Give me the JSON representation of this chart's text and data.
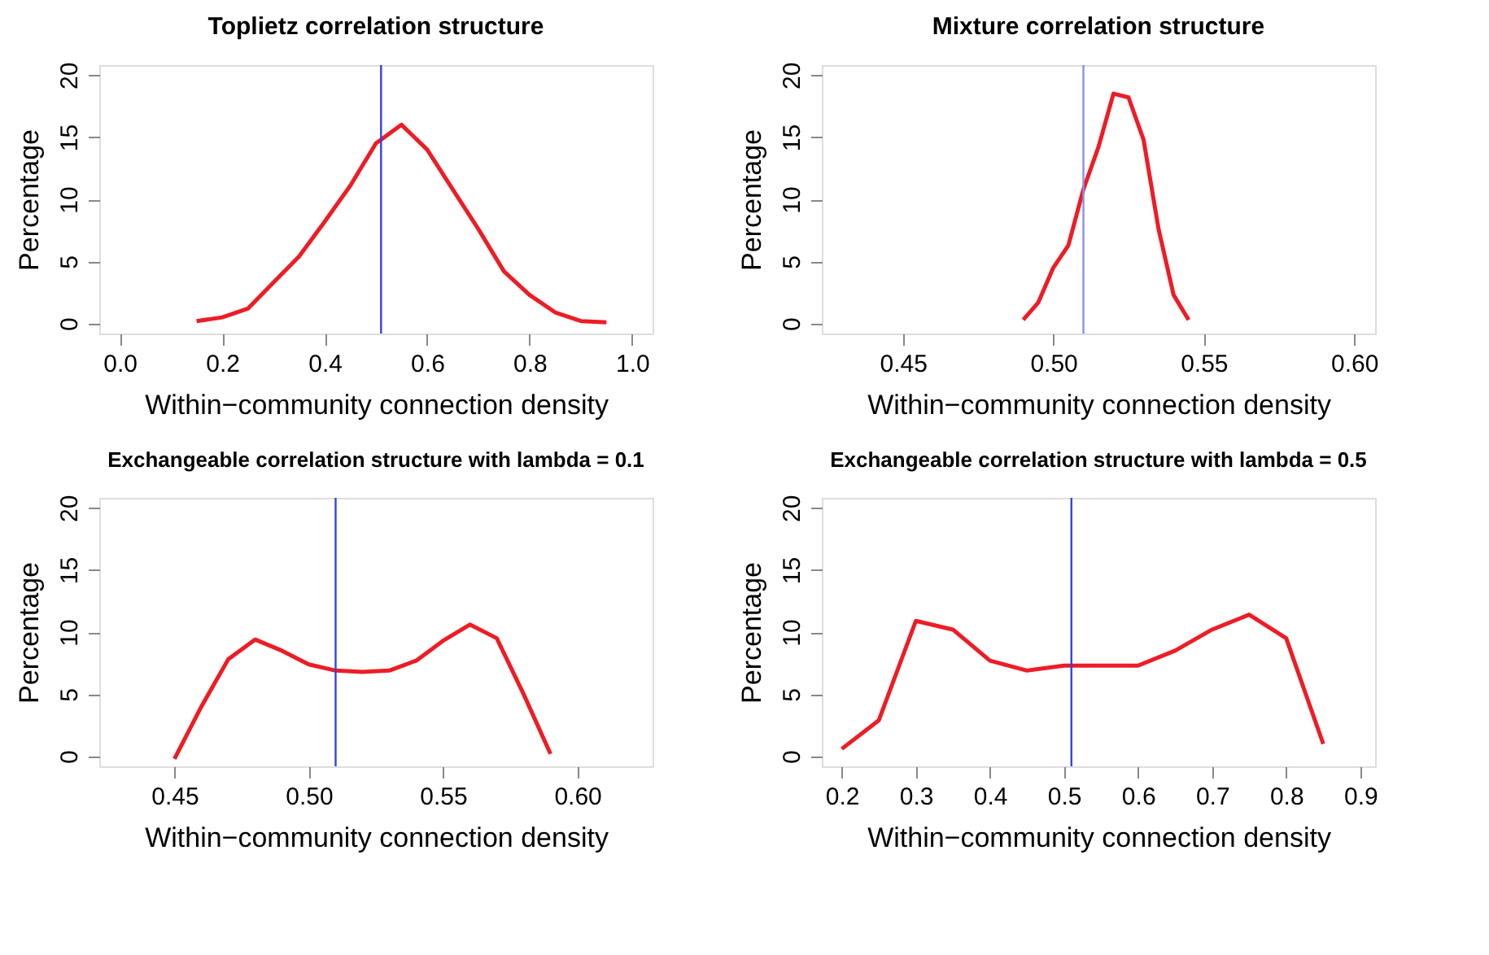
{
  "chart_data": [
    {
      "type": "line",
      "title": "Toplietz correlation structure",
      "xlabel": "Within−community connection density",
      "ylabel": "Percentage",
      "x": [
        0.15,
        0.2,
        0.25,
        0.3,
        0.35,
        0.4,
        0.45,
        0.5,
        0.55,
        0.6,
        0.65,
        0.7,
        0.75,
        0.8,
        0.85,
        0.9,
        0.95
      ],
      "series": [
        {
          "color": "#ee1c25",
          "values": [
            0.2,
            0.5,
            1.2,
            3.3,
            5.4,
            8.2,
            11.1,
            14.5,
            16.0,
            14.0,
            10.8,
            7.6,
            4.2,
            2.3,
            0.9,
            0.2,
            0.1
          ]
        }
      ],
      "xlim": [
        -0.04,
        1.04
      ],
      "ylim": [
        -0.8,
        20.8
      ],
      "xticks": [
        {
          "value": 0,
          "label": "0.0"
        },
        0.2,
        0.4,
        0.6,
        0.8,
        {
          "value": 1,
          "label": "1.0"
        }
      ],
      "yticks": [
        0,
        5,
        10,
        15,
        20
      ],
      "ref_lines": [
        {
          "axis": "x",
          "value": 0.51,
          "color": "#3344dd"
        }
      ],
      "line_style": "solid"
    },
    {
      "type": "line",
      "title": "Mixture correlation structure",
      "xlabel": "Within−community connection density",
      "ylabel": "Percentage",
      "x": [
        0.49,
        0.495,
        0.5,
        0.505,
        0.51,
        0.515,
        0.52,
        0.525,
        0.53,
        0.535,
        0.54,
        0.545
      ],
      "series": [
        {
          "color": "#ee1c25",
          "values": [
            0.3,
            1.7,
            4.5,
            6.3,
            10.8,
            14.2,
            18.5,
            18.2,
            14.8,
            7.6,
            2.3,
            0.3
          ]
        }
      ],
      "xlim": [
        0.423,
        0.607
      ],
      "ylim": [
        -0.8,
        20.8
      ],
      "xticks": [
        0.45,
        {
          "value": 0.5,
          "label": "0.50"
        },
        0.55,
        {
          "value": 0.6,
          "label": "0.60"
        }
      ],
      "yticks": [
        0,
        5,
        10,
        15,
        20
      ],
      "ref_lines": [
        {
          "axis": "x",
          "value": 0.51,
          "color": "#8890e8"
        }
      ],
      "line_style": "solid"
    },
    {
      "type": "line",
      "title": "Exchangeable correlation structure with lambda = 0.1",
      "xlabel": "Within−community connection density",
      "ylabel": "Percentage",
      "x": [
        0.45,
        0.46,
        0.47,
        0.48,
        0.49,
        0.5,
        0.51,
        0.52,
        0.53,
        0.54,
        0.55,
        0.56,
        0.57,
        0.58,
        0.59
      ],
      "series": [
        {
          "color": "#ee1c25",
          "values": [
            -0.2,
            4.0,
            7.8,
            9.4,
            8.5,
            7.4,
            6.9,
            6.8,
            6.9,
            7.7,
            9.3,
            10.6,
            9.5,
            5.0,
            0.2
          ]
        }
      ],
      "xlim": [
        0.422,
        0.628
      ],
      "ylim": [
        -0.8,
        20.8
      ],
      "xticks": [
        0.45,
        {
          "value": 0.5,
          "label": "0.50"
        },
        0.55,
        {
          "value": 0.6,
          "label": "0.60"
        }
      ],
      "yticks": [
        0,
        5,
        10,
        15,
        20
      ],
      "ref_lines": [
        {
          "axis": "x",
          "value": 0.51,
          "color": "#3344dd"
        }
      ],
      "line_style": "solid"
    },
    {
      "type": "line",
      "title": "Exchangeable correlation structure with lambda = 0.5",
      "xlabel": "Within−community connection density",
      "ylabel": "Percentage",
      "x": [
        0.2,
        0.25,
        0.3,
        0.35,
        0.4,
        0.45,
        0.5,
        0.55,
        0.6,
        0.65,
        0.7,
        0.75,
        0.8,
        0.85
      ],
      "series": [
        {
          "color": "#ee1c25",
          "values": [
            0.6,
            2.9,
            10.9,
            10.2,
            7.7,
            6.9,
            7.3,
            7.3,
            7.3,
            8.5,
            10.2,
            11.4,
            9.5,
            1.0
          ]
        }
      ],
      "xlim": [
        0.173,
        0.92
      ],
      "ylim": [
        -0.8,
        20.8
      ],
      "xticks": [
        0.2,
        0.3,
        0.4,
        0.5,
        0.6,
        0.7,
        0.8,
        0.9
      ],
      "yticks": [
        0,
        5,
        10,
        15,
        20
      ],
      "ref_lines": [
        {
          "axis": "x",
          "value": 0.51,
          "color": "#3344dd"
        }
      ],
      "line_style": "solid"
    }
  ]
}
